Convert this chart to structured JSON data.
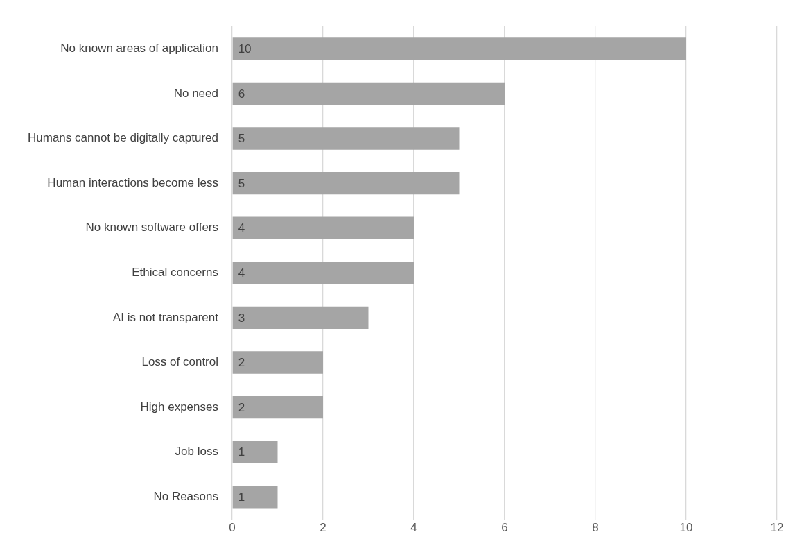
{
  "chart_data": {
    "type": "bar",
    "orientation": "horizontal",
    "categories": [
      "No known areas of application",
      "No need",
      "Humans cannot be digitally captured",
      "Human interactions become less",
      "No known software offers",
      "Ethical concerns",
      "AI is not transparent",
      "Loss of control",
      "High expenses",
      "Job loss",
      "No Reasons"
    ],
    "values": [
      10,
      6,
      5,
      5,
      4,
      4,
      3,
      2,
      2,
      1,
      1
    ],
    "color": "#a5a5a5",
    "xlim": [
      0,
      12
    ],
    "xticks": [
      0,
      2,
      4,
      6,
      8,
      10,
      12
    ],
    "grid": "x",
    "legend": false,
    "data_labels": true
  }
}
